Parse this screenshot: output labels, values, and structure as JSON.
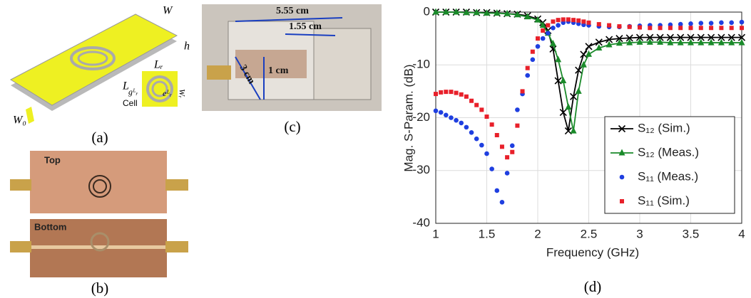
{
  "panels": {
    "a": {
      "caption": "(a)",
      "width": "W",
      "height": "h",
      "length": "L",
      "cell_length": "Lᵣ",
      "cell_width": "Wᵣ",
      "gap": "gᴸᵣ",
      "edge": "eᴸᵣ",
      "cell": "Cell",
      "feed": "W₀"
    },
    "b": {
      "caption": "(b)",
      "top": "Top",
      "bottom": "Bottom"
    },
    "c": {
      "caption": "(c)",
      "length": "5.55 cm",
      "cell_length": "1.55 cm",
      "depth": "3 cm",
      "height": "1 cm"
    },
    "d": {
      "caption": "(d)"
    }
  },
  "chart_data": {
    "type": "line",
    "xlabel": "Frequency (GHz)",
    "ylabel": "Mag. S-Param. (dB)",
    "xlim": [
      1,
      4
    ],
    "xticks": [
      1,
      1.5,
      2,
      2.5,
      3,
      3.5,
      4
    ],
    "ylim": [
      -40,
      0
    ],
    "yticks": [
      0,
      -10,
      -20,
      -30,
      -40
    ],
    "grid": true,
    "legend": "lower right",
    "series": [
      {
        "name": "S₁₂ (Sim.)",
        "color": "#000000",
        "marker": "x",
        "line": true,
        "x": [
          1,
          1.1,
          1.2,
          1.3,
          1.4,
          1.5,
          1.6,
          1.7,
          1.8,
          1.9,
          2.0,
          2.05,
          2.1,
          2.15,
          2.2,
          2.25,
          2.3,
          2.35,
          2.4,
          2.45,
          2.5,
          2.6,
          2.7,
          2.8,
          2.9,
          3.0,
          3.1,
          3.2,
          3.3,
          3.4,
          3.5,
          3.6,
          3.7,
          3.8,
          3.9,
          4.0
        ],
        "values": [
          0,
          0,
          0,
          0,
          -0.1,
          -0.1,
          -0.2,
          -0.3,
          -0.4,
          -0.7,
          -1.3,
          -2,
          -3.5,
          -7,
          -13,
          -19,
          -22.5,
          -16,
          -11,
          -8,
          -6.5,
          -5.7,
          -5.2,
          -5,
          -4.9,
          -4.8,
          -4.8,
          -4.8,
          -4.8,
          -4.8,
          -4.8,
          -4.8,
          -4.8,
          -4.8,
          -4.8,
          -4.8
        ]
      },
      {
        "name": "S₁₂ (Meas.)",
        "color": "#1a8a2a",
        "marker": "triangle",
        "line": true,
        "x": [
          1,
          1.1,
          1.2,
          1.3,
          1.4,
          1.5,
          1.6,
          1.7,
          1.8,
          1.9,
          2.0,
          2.05,
          2.1,
          2.15,
          2.2,
          2.25,
          2.3,
          2.35,
          2.4,
          2.45,
          2.5,
          2.6,
          2.7,
          2.8,
          2.9,
          3.0,
          3.1,
          3.2,
          3.3,
          3.4,
          3.5,
          3.6,
          3.7,
          3.8,
          3.9,
          4.0
        ],
        "values": [
          0,
          0,
          0,
          -0.1,
          -0.1,
          -0.2,
          -0.2,
          -0.3,
          -0.5,
          -0.9,
          -1.5,
          -2.5,
          -4,
          -6,
          -9,
          -13,
          -18,
          -22.5,
          -15,
          -10,
          -8,
          -6.8,
          -6.2,
          -5.9,
          -5.8,
          -5.7,
          -5.7,
          -5.7,
          -5.8,
          -5.8,
          -5.8,
          -5.8,
          -5.8,
          -5.8,
          -5.8,
          -5.8
        ]
      },
      {
        "name": "S₁₁ (Meas.)",
        "color": "#1f3fe0",
        "marker": "circle",
        "line": false,
        "x": [
          1,
          1.05,
          1.1,
          1.15,
          1.2,
          1.25,
          1.3,
          1.35,
          1.4,
          1.45,
          1.5,
          1.55,
          1.6,
          1.65,
          1.7,
          1.75,
          1.8,
          1.85,
          1.9,
          1.95,
          2.0,
          2.05,
          2.1,
          2.15,
          2.2,
          2.25,
          2.3,
          2.35,
          2.4,
          2.45,
          2.5,
          2.6,
          2.7,
          2.8,
          2.9,
          3.0,
          3.1,
          3.2,
          3.3,
          3.4,
          3.5,
          3.6,
          3.7,
          3.8,
          3.9,
          4.0
        ],
        "values": [
          -18.7,
          -19,
          -19.5,
          -20,
          -20.5,
          -21,
          -21.8,
          -22.8,
          -24,
          -25.2,
          -26.8,
          -29.7,
          -33.8,
          -36,
          -30.5,
          -25.3,
          -18.5,
          -15.5,
          -12,
          -9,
          -6.5,
          -5,
          -4,
          -3,
          -2.5,
          -2,
          -1.8,
          -2,
          -2.2,
          -2.4,
          -2.5,
          -2.7,
          -2.8,
          -2.8,
          -2.7,
          -2.6,
          -2.5,
          -2.5,
          -2.4,
          -2.3,
          -2.2,
          -2.1,
          -2.1,
          -2.0,
          -2.0,
          -1.9
        ]
      },
      {
        "name": "S₁₁ (Sim.)",
        "color": "#e8202a",
        "marker": "square",
        "line": false,
        "x": [
          1,
          1.05,
          1.1,
          1.15,
          1.2,
          1.25,
          1.3,
          1.35,
          1.4,
          1.45,
          1.5,
          1.55,
          1.6,
          1.65,
          1.7,
          1.75,
          1.8,
          1.85,
          1.9,
          1.95,
          2.0,
          2.05,
          2.1,
          2.15,
          2.2,
          2.25,
          2.3,
          2.35,
          2.4,
          2.45,
          2.5,
          2.6,
          2.7,
          2.8,
          2.9,
          3.0,
          3.1,
          3.2,
          3.3,
          3.4,
          3.5,
          3.6,
          3.7,
          3.8,
          3.9,
          4.0
        ],
        "values": [
          -15.5,
          -15.2,
          -15.1,
          -15.1,
          -15.3,
          -15.6,
          -16,
          -16.8,
          -17.6,
          -18.5,
          -19.8,
          -21.3,
          -23.3,
          -25.5,
          -27.5,
          -26.5,
          -21.5,
          -15,
          -10.6,
          -7.5,
          -5,
          -3.5,
          -2.5,
          -1.8,
          -1.5,
          -1.4,
          -1.4,
          -1.5,
          -1.6,
          -1.8,
          -2,
          -2.3,
          -2.5,
          -2.7,
          -2.8,
          -2.9,
          -3,
          -3,
          -3,
          -3,
          -3,
          -3,
          -3,
          -3,
          -3,
          -3
        ]
      }
    ]
  }
}
